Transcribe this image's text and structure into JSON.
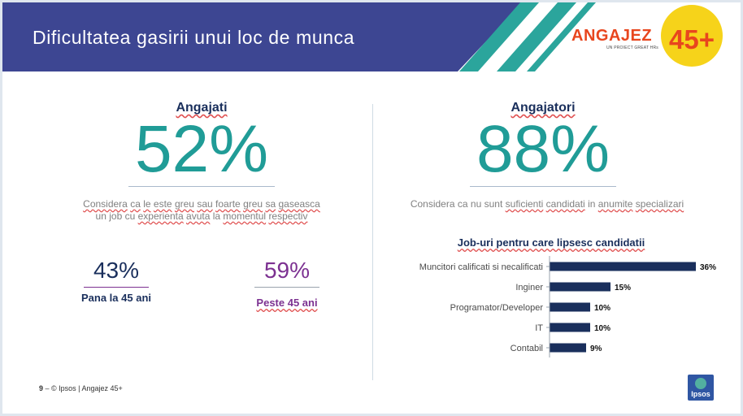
{
  "header": {
    "title": "Dificultatea gasirii unui loc de munca",
    "logo_word": "ANGAJEZ",
    "logo_number": "45+",
    "logo_tagline": "UN PROIECT GREAT HRs",
    "colors": {
      "band": "#3d4692",
      "stripe": "#2ba59c",
      "logo_yellow": "#f6d31a",
      "logo_orange": "#e8461e"
    }
  },
  "left": {
    "heading": "Angajati",
    "big_stat": "52%",
    "description_words": [
      "Considera",
      "ca",
      "le",
      "este",
      "greu",
      "sau",
      "foarte",
      "greu",
      "sa",
      "gaseasca"
    ],
    "description_line2_words": [
      "un",
      "job",
      "cu",
      "experienta",
      "avuta",
      "la",
      "momentul",
      "respectiv"
    ],
    "sub_stats": [
      {
        "value": "43%",
        "label": "Pana la 45 ani",
        "color": "#1a2f5c"
      },
      {
        "value": "59%",
        "label": "Peste 45 ani",
        "color": "#7c3191"
      }
    ]
  },
  "right": {
    "heading": "Angajatori",
    "big_stat": "88%",
    "description_words": [
      "Considera",
      "ca",
      "nu",
      "sunt",
      "suficienti",
      "candidati",
      "in",
      "anumite",
      "specializari"
    ]
  },
  "chart_data": {
    "type": "bar",
    "orientation": "horizontal",
    "title": "Job-uri pentru care lipsesc candidatii",
    "categories": [
      "Muncitori calificati si necalificati",
      "Inginer",
      "Programator/Developer",
      "IT",
      "Contabil"
    ],
    "values": [
      36,
      15,
      10,
      10,
      9
    ],
    "value_labels": [
      "36%",
      "15%",
      "10%",
      "10%",
      "9%"
    ],
    "unit": "%",
    "xlim": [
      0,
      36
    ],
    "bar_color": "#1a2f5c"
  },
  "footer": {
    "page_number": "9",
    "text": "– © Ipsos | Angajez 45+"
  },
  "ipsos_logo": {
    "text": "Ipsos"
  }
}
